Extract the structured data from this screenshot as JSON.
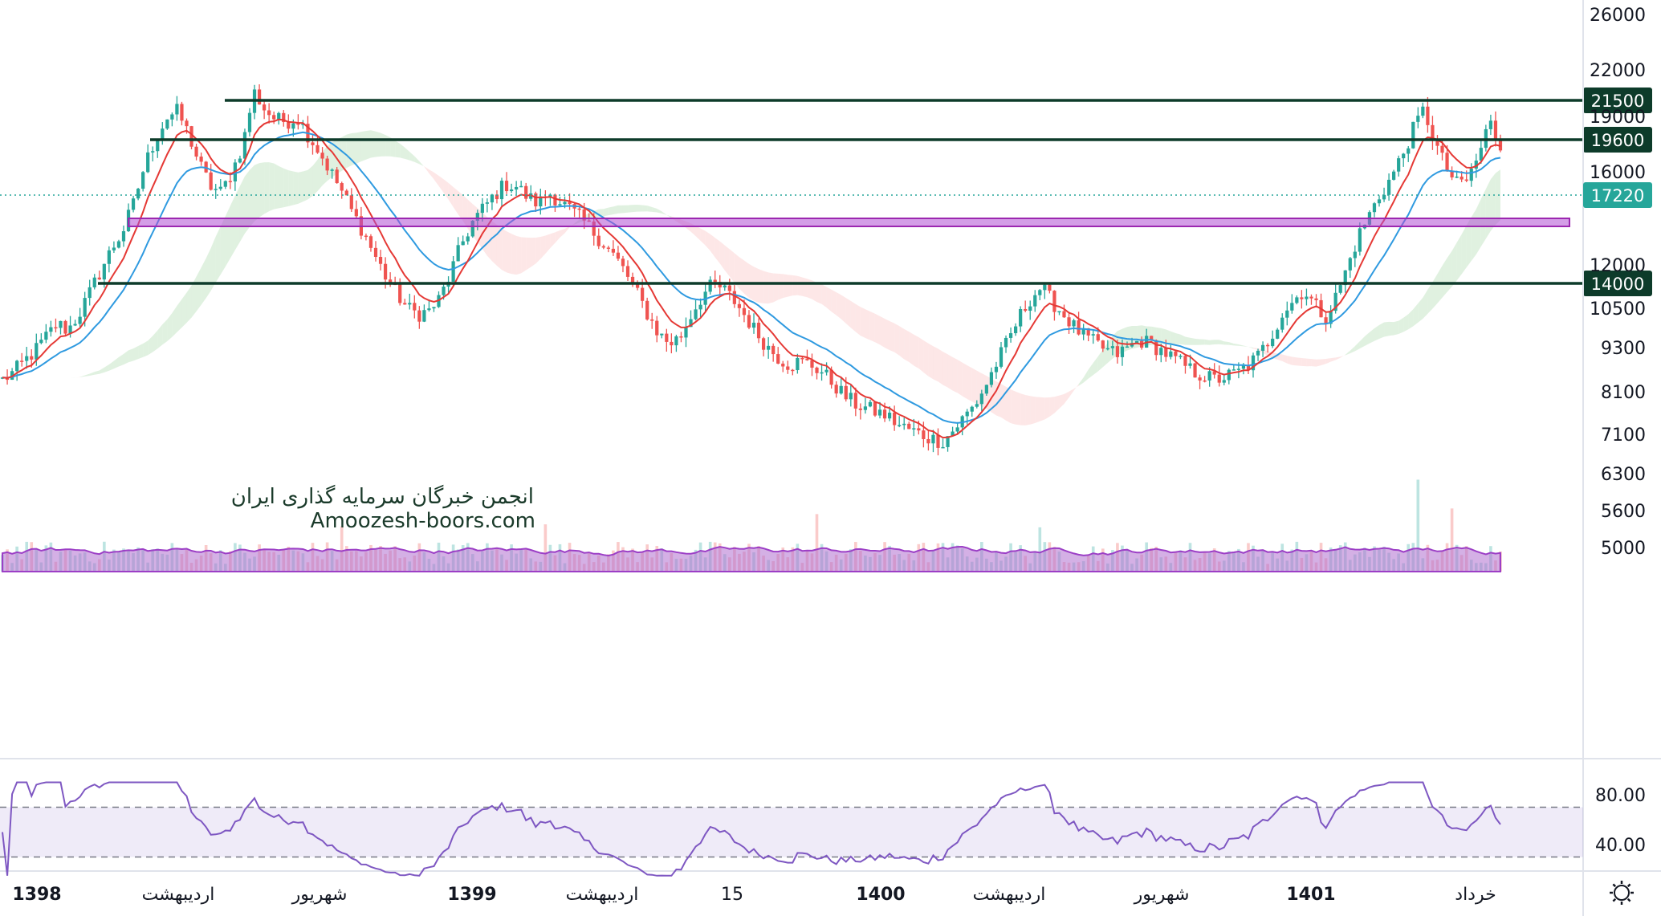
{
  "chart_data": {
    "type": "candlestick",
    "price_axis": {
      "scale": "log",
      "ticks": [
        "26000",
        "22000",
        "19000",
        "16000",
        "12000",
        "10500",
        "9300",
        "8100",
        "7100",
        "6300",
        "5600",
        "5000"
      ],
      "tick_values": [
        26000,
        22000,
        19000,
        16000,
        12000,
        10500,
        9300,
        8100,
        7100,
        6300,
        5600,
        5000
      ]
    },
    "time_axis": {
      "labels": [
        {
          "text": "1398",
          "bold": true
        },
        {
          "text": "اردیبهشت",
          "bold": false
        },
        {
          "text": "شهریور",
          "bold": false
        },
        {
          "text": "1399",
          "bold": true
        },
        {
          "text": "اردیبهشت",
          "bold": false
        },
        {
          "text": "15",
          "bold": false
        },
        {
          "text": "1400",
          "bold": true
        },
        {
          "text": "اردیبهشت",
          "bold": false
        },
        {
          "text": "شهریور",
          "bold": false
        },
        {
          "text": "1401",
          "bold": true
        },
        {
          "text": "خرداد",
          "bold": false
        }
      ]
    },
    "horizontal_levels": [
      {
        "label": "21500",
        "value": 21500,
        "color": "#0d3b2a"
      },
      {
        "label": "19600",
        "value": 19600,
        "color": "#0d3b2a"
      },
      {
        "label": "14000",
        "value": 14000,
        "color": "#0d3b2a"
      }
    ],
    "current_price": {
      "label": "17220",
      "value": 17220,
      "color": "#26a69a"
    },
    "zone": {
      "low": 15800,
      "high": 16300,
      "color": "#b04fd4"
    },
    "rsi": {
      "ticks": [
        "80.00",
        "40.00"
      ],
      "upper": 70,
      "lower": 30
    },
    "close_series": [
      8400,
      8600,
      8900,
      9200,
      9600,
      10000,
      9800,
      10300,
      11000,
      11800,
      12600,
      13300,
      14500,
      16300,
      17700,
      18900,
      19300,
      18000,
      16400,
      15300,
      15000,
      16000,
      17400,
      20500,
      19400,
      18800,
      18700,
      18900,
      17900,
      17000,
      16000,
      15100,
      14100,
      13300,
      12400,
      11600,
      11000,
      10500,
      10300,
      10400,
      10800,
      11700,
      12800,
      13700,
      14300,
      14900,
      15400,
      15300,
      14800,
      14500,
      15000,
      14600,
      14200,
      13800,
      13300,
      12800,
      12300,
      11700,
      11000,
      10300,
      9700,
      9400,
      9600,
      10300,
      10900,
      11300,
      11100,
      10700,
      10200,
      9700,
      9300,
      9000,
      8800,
      8900,
      8800,
      8600,
      8300,
      8000,
      7800,
      7700,
      7600,
      7500,
      7300,
      7200,
      7100,
      7000,
      6950,
      7200,
      7500,
      7800,
      8300,
      8900,
      9500,
      10200,
      10800,
      11200,
      10700,
      10300,
      9900,
      9600,
      9400,
      9200,
      9100,
      9300,
      9500,
      9400,
      9200,
      9000,
      8800,
      8600,
      8500,
      8400,
      8500,
      8600,
      8800,
      9100,
      9600,
      10300,
      10700,
      11100,
      10600,
      10200,
      10900,
      11900,
      13100,
      14000,
      14900,
      15700,
      16800,
      18200,
      19400,
      17500,
      16200,
      15400,
      15600,
      16800,
      18700,
      17300
    ]
  }
}
